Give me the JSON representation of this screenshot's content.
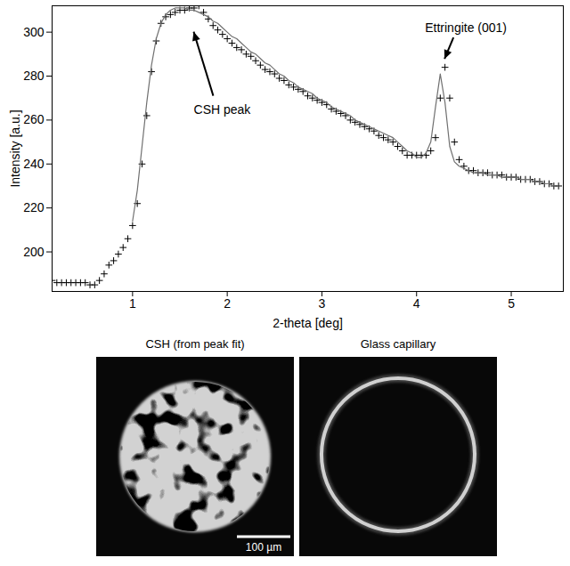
{
  "chart_data": {
    "type": "scatter",
    "x_label": "2-theta [deg]",
    "y_label": "Intensity [a.u.]",
    "xlim": [
      0.15,
      5.55
    ],
    "ylim": [
      182,
      312
    ],
    "xticks": [
      1,
      2,
      3,
      4,
      5
    ],
    "yticks": [
      200,
      220,
      240,
      260,
      280,
      300
    ],
    "grid": false,
    "x": [
      0.15,
      0.2,
      0.25,
      0.3,
      0.35,
      0.4,
      0.45,
      0.5,
      0.55,
      0.6,
      0.65,
      0.7,
      0.75,
      0.8,
      0.85,
      0.9,
      0.95,
      1.0,
      1.05,
      1.1,
      1.15,
      1.2,
      1.25,
      1.3,
      1.35,
      1.4,
      1.45,
      1.5,
      1.55,
      1.6,
      1.65,
      1.7,
      1.75,
      1.8,
      1.85,
      1.9,
      1.95,
      2.0,
      2.05,
      2.1,
      2.15,
      2.2,
      2.25,
      2.3,
      2.35,
      2.4,
      2.45,
      2.5,
      2.55,
      2.6,
      2.65,
      2.7,
      2.75,
      2.8,
      2.85,
      2.9,
      2.95,
      3.0,
      3.05,
      3.1,
      3.15,
      3.2,
      3.25,
      3.3,
      3.35,
      3.4,
      3.45,
      3.5,
      3.55,
      3.6,
      3.65,
      3.7,
      3.75,
      3.8,
      3.85,
      3.9,
      3.95,
      4.0,
      4.05,
      4.1,
      4.15,
      4.2,
      4.25,
      4.3,
      4.35,
      4.4,
      4.45,
      4.5,
      4.55,
      4.6,
      4.65,
      4.7,
      4.75,
      4.8,
      4.85,
      4.9,
      4.95,
      5.0,
      5.05,
      5.1,
      5.15,
      5.2,
      5.25,
      5.3,
      5.35,
      5.4,
      5.45,
      5.5
    ],
    "series": [
      {
        "type": "scatter",
        "marker": "plus",
        "color": "#000000",
        "values": [
          187,
          186,
          186,
          186,
          186,
          186,
          186,
          186,
          185,
          185,
          187,
          190,
          194,
          196,
          199,
          202,
          206,
          212,
          222,
          240,
          262,
          282,
          296,
          304,
          307,
          308,
          309,
          310,
          310,
          311,
          311,
          312,
          309,
          306,
          303,
          301,
          299,
          297,
          295,
          293,
          292,
          290,
          289,
          287,
          285,
          283,
          282,
          281,
          279,
          278,
          276,
          275,
          274,
          273,
          271,
          270,
          269,
          268,
          267,
          265,
          264,
          263,
          262,
          260,
          259,
          258,
          257,
          256,
          255,
          253,
          252,
          251,
          250,
          248,
          246,
          244,
          244,
          244,
          244,
          244,
          246,
          252,
          270,
          284,
          270,
          250,
          242,
          239,
          237,
          237,
          236,
          236,
          236,
          235,
          235,
          235,
          234,
          234,
          234,
          233,
          233,
          233,
          232,
          232,
          231,
          231,
          230,
          230
        ]
      },
      {
        "type": "line",
        "color": "#707070",
        "line_style": "solid",
        "values": [
          null,
          null,
          null,
          null,
          null,
          null,
          null,
          null,
          null,
          null,
          null,
          null,
          null,
          null,
          null,
          null,
          null,
          214,
          228,
          248,
          268,
          285,
          297,
          304,
          308,
          310,
          311,
          311,
          311,
          310,
          310,
          309,
          308,
          307,
          305,
          304,
          302,
          300,
          298,
          297,
          295,
          293,
          291,
          290,
          288,
          286,
          285,
          283,
          281,
          280,
          278,
          277,
          275,
          274,
          273,
          272,
          270,
          269,
          268,
          266,
          265,
          264,
          263,
          262,
          260,
          259,
          258,
          257,
          256,
          255,
          254,
          253,
          252,
          250,
          248,
          246,
          245,
          243,
          243,
          245,
          250,
          266,
          281,
          268,
          248,
          241,
          239,
          238,
          237,
          236,
          236,
          236,
          235,
          235,
          235,
          234,
          234,
          234,
          234,
          233,
          233,
          233,
          232,
          232,
          231,
          231,
          230,
          230
        ]
      }
    ],
    "annotations": [
      {
        "text": "CSH peak",
        "x": 1.65,
        "y": 300
      },
      {
        "text": "Ettringite (001)",
        "x": 4.3,
        "y": 286
      }
    ]
  },
  "images": [
    {
      "title": "CSH (from peak fit)",
      "scale_bar": "100 µm"
    },
    {
      "title": "Glass capillary"
    }
  ]
}
